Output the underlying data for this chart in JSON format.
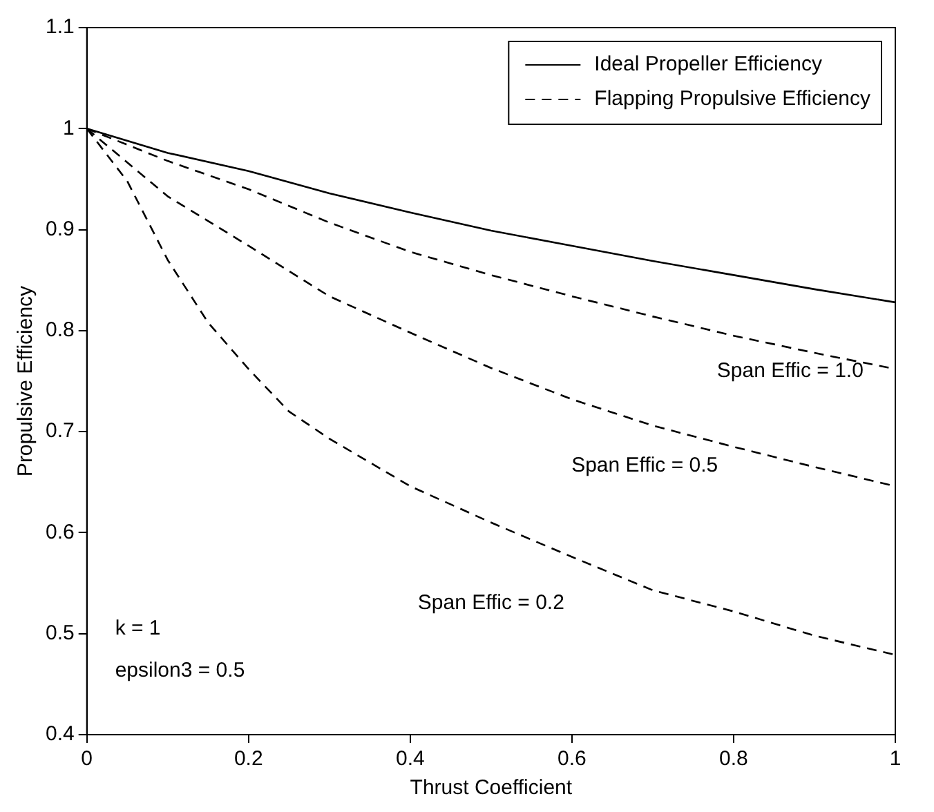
{
  "chart_data": {
    "type": "line",
    "xlabel": "Thrust Coefficient",
    "ylabel": "Propulsive Efficiency",
    "x": [
      0,
      0.1,
      0.2,
      0.3,
      0.4,
      0.5,
      0.6,
      0.7,
      0.8,
      0.9,
      1
    ],
    "series": [
      {
        "name": "Ideal Propeller Efficiency",
        "color": "#000000",
        "line_style": "solid",
        "values": [
          1,
          0.976,
          0.958,
          0.936,
          0.917,
          0.899,
          0.884,
          0.869,
          0.855,
          0.841,
          0.828
        ]
      },
      {
        "name": "Flapping Propulsive Efficiency",
        "color": "#000000",
        "line_style": "dashed",
        "values": [
          1,
          0.968,
          0.94,
          0.907,
          0.878,
          0.855,
          0.834,
          0.814,
          0.795,
          0.778,
          0.762
        ]
      },
      {
        "color": "#000000",
        "line_style": "dashed",
        "values": [
          1,
          0.933,
          0.884,
          0.834,
          0.798,
          0.763,
          0.732,
          0.706,
          0.685,
          0.665,
          0.646
        ]
      },
      {
        "color": "#000000",
        "line_style": "dashed",
        "x": [
          0,
          0.05,
          0.1,
          0.15,
          0.2,
          0.25,
          0.3,
          0.4,
          0.5,
          0.6,
          0.7,
          0.8,
          0.9,
          1
        ],
        "values": [
          1,
          0.948,
          0.87,
          0.808,
          0.762,
          0.72,
          0.693,
          0.646,
          0.61,
          0.576,
          0.543,
          0.522,
          0.498,
          0.479
        ]
      }
    ],
    "xlim": [
      0,
      1
    ],
    "xticks": [
      0,
      0.2,
      0.4,
      0.6,
      0.8,
      1
    ],
    "ylim": [
      0.4,
      1.1
    ],
    "yticks": [
      0.4,
      0.5,
      0.6,
      0.7,
      0.8,
      0.9,
      1,
      1.1
    ],
    "grid": false,
    "legend": "top right",
    "marker": "none",
    "annotations": [
      "Span Effic = 1.0",
      "Span Effic = 0.5",
      "Span Effic = 0.2",
      "k = 1",
      "epsilon3 = 0.5"
    ]
  }
}
